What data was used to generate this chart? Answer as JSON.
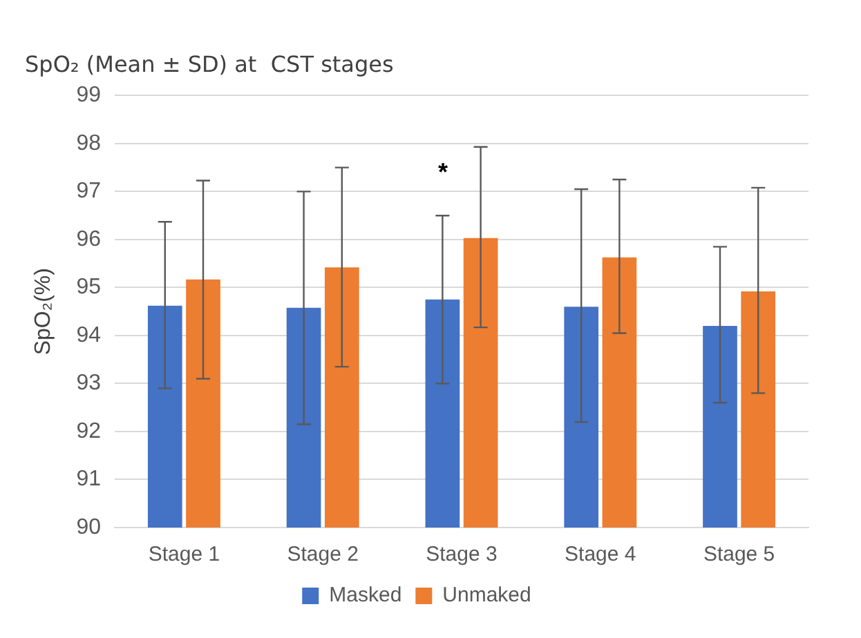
{
  "chart_data": {
    "type": "bar",
    "title": "SpO₂ (Mean ± SD) at  CST stages",
    "ylabel": "SpO₂(%)",
    "categories": [
      "Stage 1",
      "Stage 2",
      "Stage 3",
      "Stage 4",
      "Stage 5"
    ],
    "series": [
      {
        "name": "Masked",
        "color": "#4472c4",
        "values": [
          94.62,
          94.58,
          94.75,
          94.6,
          94.2
        ],
        "errors": [
          [
            92.9,
            96.37
          ],
          [
            92.15,
            97.0
          ],
          [
            93.0,
            96.5
          ],
          [
            92.2,
            97.05
          ],
          [
            92.6,
            95.85
          ]
        ]
      },
      {
        "name": "Unmaked",
        "color": "#ed7d31",
        "values": [
          95.17,
          95.42,
          96.03,
          95.63,
          94.92
        ],
        "errors": [
          [
            93.1,
            97.23
          ],
          [
            93.35,
            97.5
          ],
          [
            94.17,
            97.93
          ],
          [
            94.05,
            97.25
          ],
          [
            92.8,
            97.08
          ]
        ]
      }
    ],
    "annotations": [
      "*"
    ],
    "ylim": [
      90,
      99
    ],
    "yticks": [
      90,
      91,
      92,
      93,
      94,
      95,
      96,
      97,
      98,
      99
    ],
    "grid": "y",
    "legend": "bottom"
  }
}
